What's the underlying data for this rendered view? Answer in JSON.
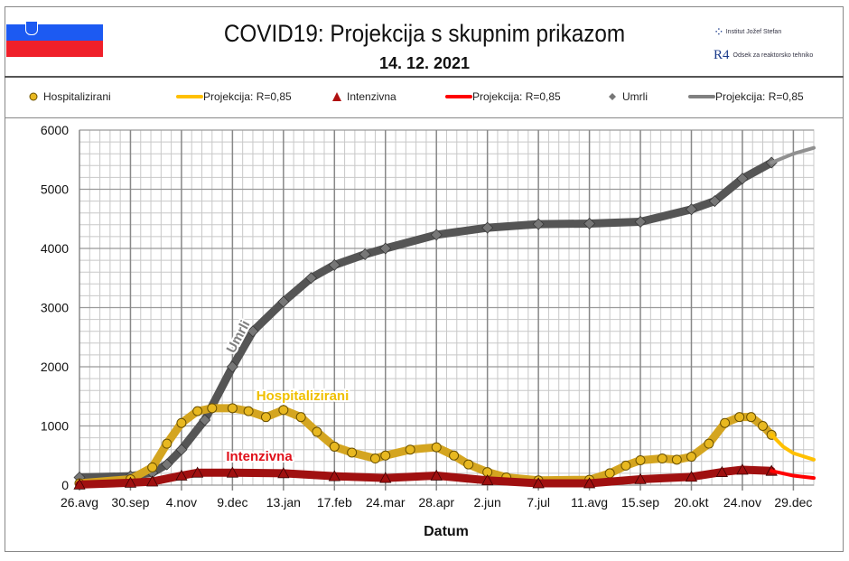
{
  "header": {
    "title": "COVID19: Projekcija s skupnim prikazom",
    "date": "14. 12. 2021",
    "logo1_text": "Institut Jožef Stefan",
    "logo2_mark": "R4",
    "logo2_text": "Odsek za reaktorsko tehniko"
  },
  "legend": [
    {
      "label": "Hospitalizirani",
      "marker": "circle",
      "color": "#e8b820"
    },
    {
      "label": "Projekcija: R=0,85",
      "marker": "line",
      "color": "#ffc000"
    },
    {
      "label": "Intenzivna",
      "marker": "triangle",
      "color": "#b01010"
    },
    {
      "label": "Projekcija: R=0,85",
      "marker": "line",
      "color": "#ff0000"
    },
    {
      "label": "Umrli",
      "marker": "diamond",
      "color": "#777777"
    },
    {
      "label": "Projekcija: R=0,85",
      "marker": "line",
      "color": "#808080"
    }
  ],
  "chart_data": {
    "type": "line",
    "xlabel": "Datum",
    "ylabel": "",
    "ylim": [
      0,
      6000
    ],
    "yticks": [
      0,
      1000,
      2000,
      3000,
      4000,
      5000,
      6000
    ],
    "xlim": [
      "2020-08-26",
      "2022-01-12"
    ],
    "xticks": [
      {
        "date": "2020-08-26",
        "label": "26.avg"
      },
      {
        "date": "2020-09-30",
        "label": "30.sep"
      },
      {
        "date": "2020-11-04",
        "label": "4.nov"
      },
      {
        "date": "2020-12-09",
        "label": "9.dec"
      },
      {
        "date": "2021-01-13",
        "label": "13.jan"
      },
      {
        "date": "2021-02-17",
        "label": "17.feb"
      },
      {
        "date": "2021-03-24",
        "label": "24.mar"
      },
      {
        "date": "2021-04-28",
        "label": "28.apr"
      },
      {
        "date": "2021-06-02",
        "label": "2.jun"
      },
      {
        "date": "2021-07-07",
        "label": "7.jul"
      },
      {
        "date": "2021-08-11",
        "label": "11.avg"
      },
      {
        "date": "2021-09-15",
        "label": "15.sep"
      },
      {
        "date": "2021-10-20",
        "label": "20.okt"
      },
      {
        "date": "2021-11-24",
        "label": "24.nov"
      },
      {
        "date": "2021-12-29",
        "label": "29.dec"
      }
    ],
    "grid": true,
    "annotations": [
      {
        "text": "Umrli",
        "color": "#808080"
      },
      {
        "text": "Hospitalizirani",
        "color": "#f0c000"
      },
      {
        "text": "Intenzivna",
        "color": "#e0101a"
      }
    ],
    "series": [
      {
        "name": "Umrli",
        "marker": "diamond",
        "color": "#555555",
        "points": [
          [
            "2020-08-26",
            130
          ],
          [
            "2020-09-30",
            150
          ],
          [
            "2020-10-15",
            210
          ],
          [
            "2020-10-25",
            350
          ],
          [
            "2020-11-04",
            600
          ],
          [
            "2020-11-20",
            1100
          ],
          [
            "2020-12-09",
            2000
          ],
          [
            "2020-12-23",
            2600
          ],
          [
            "2021-01-13",
            3100
          ],
          [
            "2021-02-01",
            3500
          ],
          [
            "2021-02-17",
            3720
          ],
          [
            "2021-03-10",
            3900
          ],
          [
            "2021-03-24",
            4000
          ],
          [
            "2021-04-28",
            4230
          ],
          [
            "2021-06-02",
            4350
          ],
          [
            "2021-07-07",
            4410
          ],
          [
            "2021-08-11",
            4420
          ],
          [
            "2021-09-15",
            4450
          ],
          [
            "2021-10-20",
            4660
          ],
          [
            "2021-11-05",
            4800
          ],
          [
            "2021-11-24",
            5180
          ],
          [
            "2021-12-14",
            5450
          ]
        ]
      },
      {
        "name": "Projekcija: R=0,85",
        "line_only": true,
        "color": "#909090",
        "points": [
          [
            "2021-12-14",
            5450
          ],
          [
            "2021-12-29",
            5600
          ],
          [
            "2022-01-12",
            5700
          ]
        ]
      },
      {
        "name": "Hospitalizirani",
        "marker": "circle",
        "color": "#d4a520",
        "points": [
          [
            "2020-08-26",
            30
          ],
          [
            "2020-09-30",
            100
          ],
          [
            "2020-10-15",
            300
          ],
          [
            "2020-10-25",
            700
          ],
          [
            "2020-11-04",
            1050
          ],
          [
            "2020-11-15",
            1250
          ],
          [
            "2020-11-25",
            1300
          ],
          [
            "2020-12-09",
            1300
          ],
          [
            "2020-12-20",
            1250
          ],
          [
            "2021-01-01",
            1150
          ],
          [
            "2021-01-13",
            1270
          ],
          [
            "2021-01-25",
            1150
          ],
          [
            "2021-02-05",
            900
          ],
          [
            "2021-02-17",
            650
          ],
          [
            "2021-03-01",
            550
          ],
          [
            "2021-03-17",
            450
          ],
          [
            "2021-03-24",
            500
          ],
          [
            "2021-04-10",
            600
          ],
          [
            "2021-04-28",
            640
          ],
          [
            "2021-05-10",
            500
          ],
          [
            "2021-05-20",
            350
          ],
          [
            "2021-06-02",
            220
          ],
          [
            "2021-06-15",
            130
          ],
          [
            "2021-07-07",
            80
          ],
          [
            "2021-08-11",
            90
          ],
          [
            "2021-08-25",
            200
          ],
          [
            "2021-09-05",
            330
          ],
          [
            "2021-09-15",
            420
          ],
          [
            "2021-09-30",
            450
          ],
          [
            "2021-10-10",
            430
          ],
          [
            "2021-10-20",
            480
          ],
          [
            "2021-11-01",
            700
          ],
          [
            "2021-11-12",
            1050
          ],
          [
            "2021-11-22",
            1150
          ],
          [
            "2021-11-30",
            1150
          ],
          [
            "2021-12-08",
            1000
          ],
          [
            "2021-12-14",
            850
          ]
        ]
      },
      {
        "name": "Projekcija: R=0,85",
        "line_only": true,
        "color": "#ffc000",
        "points": [
          [
            "2021-12-14",
            850
          ],
          [
            "2021-12-22",
            650
          ],
          [
            "2021-12-29",
            540
          ],
          [
            "2022-01-12",
            430
          ]
        ]
      },
      {
        "name": "Intenzivna",
        "marker": "triangle",
        "color": "#a01010",
        "points": [
          [
            "2020-08-26",
            10
          ],
          [
            "2020-09-30",
            40
          ],
          [
            "2020-10-15",
            60
          ],
          [
            "2020-11-04",
            160
          ],
          [
            "2020-11-15",
            210
          ],
          [
            "2020-12-09",
            210
          ],
          [
            "2021-01-13",
            200
          ],
          [
            "2021-02-17",
            150
          ],
          [
            "2021-03-24",
            120
          ],
          [
            "2021-04-28",
            160
          ],
          [
            "2021-06-02",
            80
          ],
          [
            "2021-07-07",
            30
          ],
          [
            "2021-08-11",
            30
          ],
          [
            "2021-09-15",
            100
          ],
          [
            "2021-10-20",
            140
          ],
          [
            "2021-11-10",
            220
          ],
          [
            "2021-11-24",
            260
          ],
          [
            "2021-12-14",
            240
          ]
        ]
      },
      {
        "name": "Projekcija: R=0,85",
        "line_only": true,
        "color": "#ff0000",
        "points": [
          [
            "2021-12-14",
            240
          ],
          [
            "2021-12-29",
            160
          ],
          [
            "2022-01-12",
            120
          ]
        ]
      }
    ]
  }
}
